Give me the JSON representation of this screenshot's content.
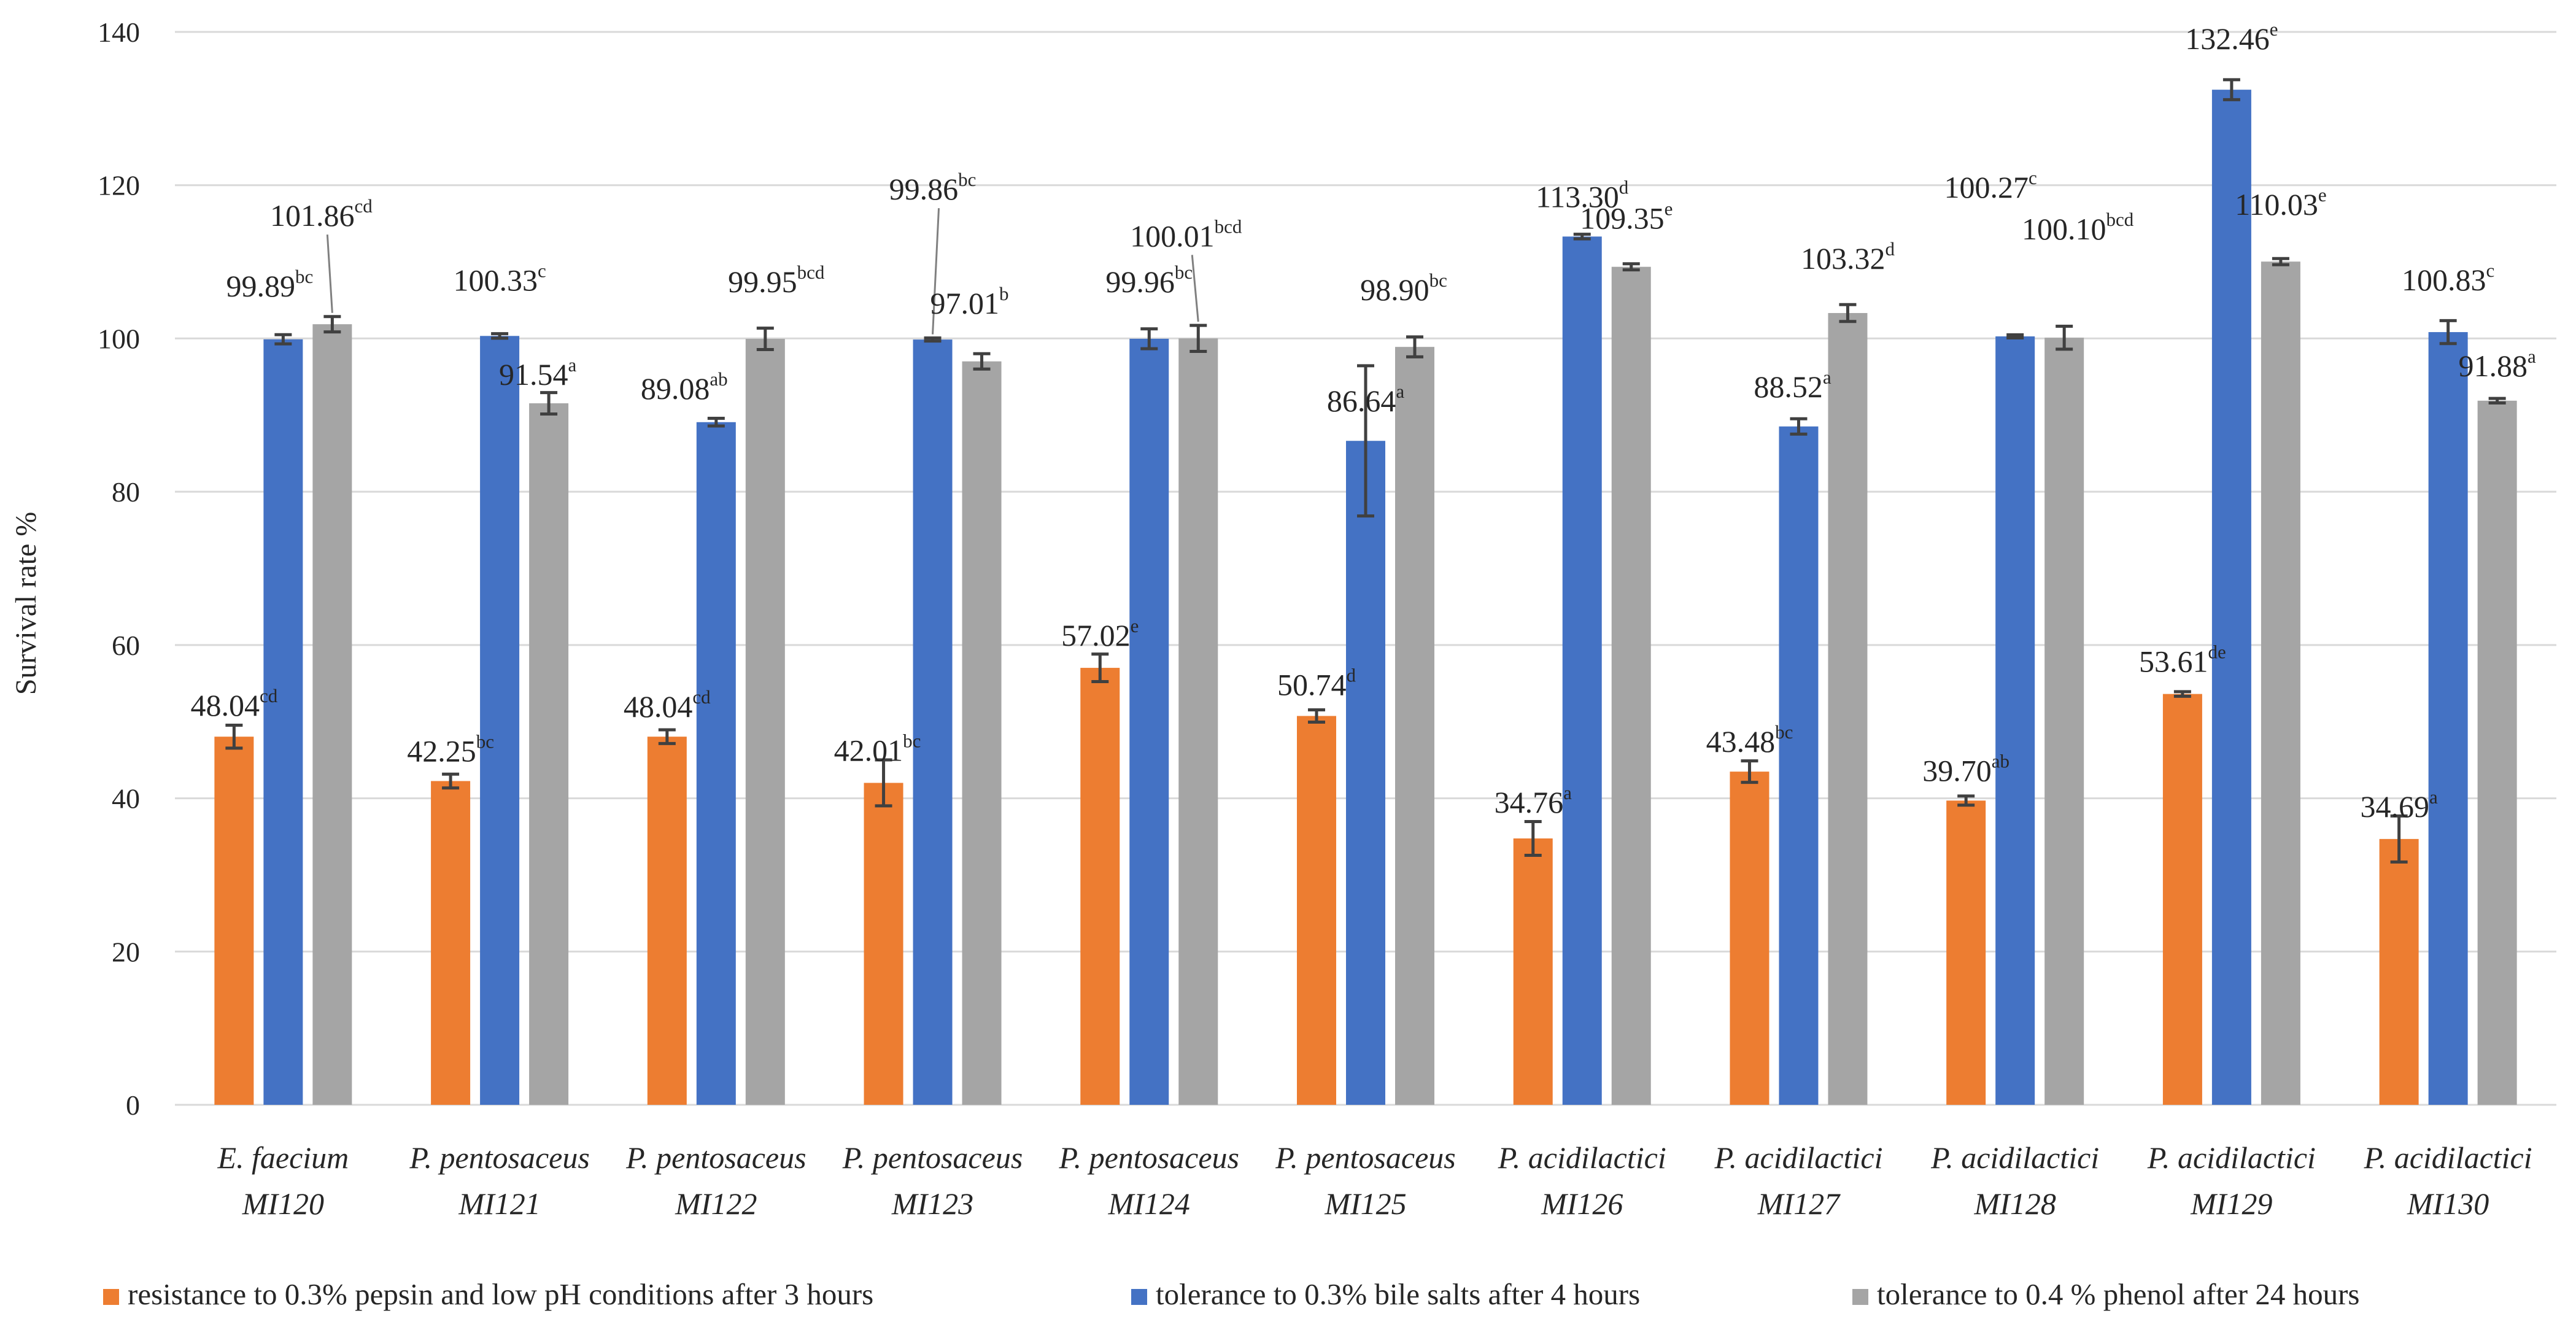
{
  "chart_data": {
    "type": "bar",
    "title": "",
    "xlabel": "",
    "ylabel": "Survival rate %",
    "ylim": [
      0,
      140
    ],
    "yticks": [
      0,
      20,
      40,
      60,
      80,
      100,
      120,
      140
    ],
    "grid": true,
    "legend_position": "bottom",
    "categories": [
      {
        "genus": "E. faecium",
        "strain": "MI120"
      },
      {
        "genus": "P. pentosaceus",
        "strain": "MI121"
      },
      {
        "genus": "P. pentosaceus",
        "strain": "MI122"
      },
      {
        "genus": "P. pentosaceus",
        "strain": "MI123"
      },
      {
        "genus": "P. pentosaceus",
        "strain": "MI124"
      },
      {
        "genus": "P. pentosaceus",
        "strain": "MI125"
      },
      {
        "genus": "P. acidilactici",
        "strain": "MI126"
      },
      {
        "genus": "P. acidilactici",
        "strain": "MI127"
      },
      {
        "genus": "P. acidilactici",
        "strain": "MI128"
      },
      {
        "genus": "P. acidilactici",
        "strain": "MI129"
      },
      {
        "genus": "P. acidilactici",
        "strain": "MI130"
      }
    ],
    "series": [
      {
        "name": "resistance to 0.3% pepsin and low pH conditions after 3 hours",
        "color": "#ED7D31",
        "values": [
          48.04,
          42.25,
          48.04,
          42.01,
          57.02,
          50.74,
          34.76,
          43.48,
          39.7,
          53.61,
          34.69
        ],
        "errors": [
          1.5,
          0.9,
          0.9,
          3.0,
          1.8,
          0.8,
          2.2,
          1.4,
          0.6,
          0.3,
          3.0
        ],
        "labels": [
          "48.04",
          "42.25",
          "48.04",
          "42.01",
          "57.02",
          "50.74",
          "34.76",
          "43.48",
          "39.70",
          "53.61",
          "34.69"
        ],
        "letters": [
          "cd",
          "bc",
          "cd",
          "bc",
          "e",
          "d",
          "a",
          "bc",
          "ab",
          "de",
          "a"
        ]
      },
      {
        "name": "tolerance to 0.3% bile salts after 4 hours",
        "color": "#4472C4",
        "values": [
          99.89,
          100.33,
          89.08,
          99.86,
          99.96,
          86.64,
          113.3,
          88.52,
          100.27,
          132.46,
          100.83
        ],
        "errors": [
          0.6,
          0.3,
          0.5,
          0.2,
          1.3,
          9.8,
          0.3,
          1.0,
          0.2,
          1.3,
          1.5
        ],
        "labels": [
          "99.89",
          "100.33",
          "89.08",
          "99.86",
          "99.96",
          "86.64",
          "113.30",
          "88.52",
          "100.27",
          "132.46",
          "100.83"
        ],
        "letters": [
          "bc",
          "c",
          "ab",
          "bc",
          "bc",
          "a",
          "d",
          "a",
          "c",
          "e",
          "c"
        ]
      },
      {
        "name": "tolerance to 0.4 % phenol after 24 hours",
        "color": "#A5A5A5",
        "values": [
          101.86,
          91.54,
          99.95,
          97.01,
          100.01,
          98.9,
          109.35,
          103.32,
          100.1,
          110.03,
          91.88
        ],
        "errors": [
          1.0,
          1.4,
          1.4,
          1.0,
          1.7,
          1.3,
          0.4,
          1.1,
          1.5,
          0.4,
          0.3
        ],
        "labels": [
          "101.86",
          "91.54",
          "99.95",
          "97.01",
          "100.01",
          "98.90",
          "109.35",
          "103.32",
          "100.10",
          "110.03",
          "91.88"
        ],
        "letters": [
          "cd",
          "a",
          "bcd",
          "b",
          "bcd",
          "bc",
          "e",
          "d",
          "bcd",
          "e",
          "a"
        ]
      }
    ]
  }
}
